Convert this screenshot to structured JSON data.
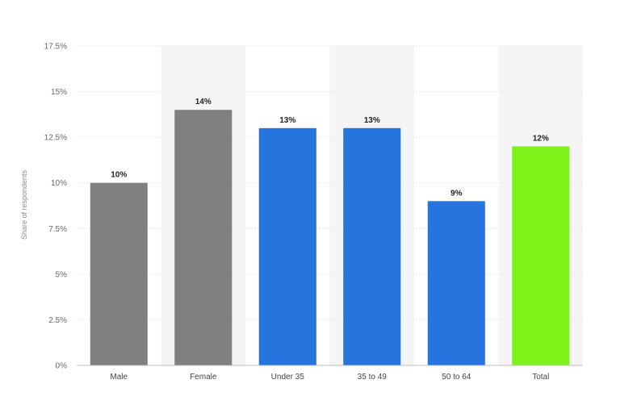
{
  "chart_data": {
    "type": "bar",
    "ylabel": "Share of respondents",
    "ylim": [
      0,
      17.5
    ],
    "y_ticks": [
      0,
      2.5,
      5,
      7.5,
      10,
      12.5,
      15,
      17.5
    ],
    "y_tick_labels": [
      "0%",
      "2.5%",
      "5%",
      "7.5%",
      "10%",
      "12.5%",
      "15%",
      "17.5%"
    ],
    "categories": [
      "Male",
      "Female",
      "Under 35",
      "35 to 49",
      "50 to 64",
      "Total"
    ],
    "values": [
      10,
      14,
      13,
      13,
      9,
      12
    ],
    "value_labels": [
      "10%",
      "14%",
      "13%",
      "13%",
      "9%",
      "12%"
    ],
    "colors": [
      "#808080",
      "#808080",
      "#2674dd",
      "#2674dd",
      "#2674dd",
      "#7cf218"
    ],
    "band_color": "#f5f5f5",
    "grid": true,
    "legend": "none"
  }
}
